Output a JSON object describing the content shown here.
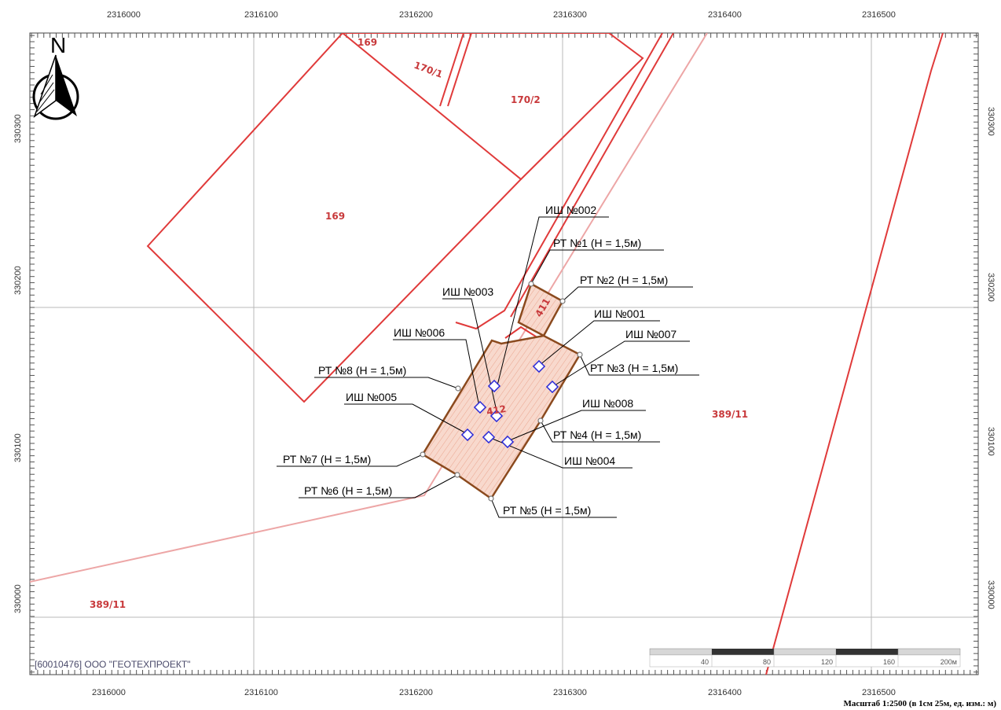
{
  "axes": {
    "x_labels": [
      "2316000",
      "2316100",
      "2316200",
      "2316300",
      "2316400",
      "2316500"
    ],
    "y_labels": [
      "330300",
      "330200",
      "330100",
      "330000"
    ]
  },
  "north": {
    "letter": "N",
    "icon": "north-arrow-icon"
  },
  "parcels": {
    "p169_top": "169",
    "p170_1": "170/1",
    "p170_2": "170/2",
    "p169_main": "169",
    "p411": "411",
    "p412": "412",
    "p389_11_east": "389/11",
    "p389_11_west": "389/11"
  },
  "callouts": {
    "ish002": "ИШ №002",
    "rt1": "РТ №1 (Н = 1,5м)",
    "rt2": "РТ №2 (Н = 1,5м)",
    "ish003": "ИШ №003",
    "ish001": "ИШ №001",
    "ish006": "ИШ №006",
    "ish007": "ИШ №007",
    "rt8": "РТ №8 (Н = 1,5м)",
    "rt3": "РТ №3 (Н = 1,5м)",
    "ish005": "ИШ №005",
    "ish008": "ИШ №008",
    "rt4": "РТ №4 (Н = 1,5м)",
    "rt7": "РТ №7 (Н = 1,5м)",
    "ish004": "ИШ №004",
    "rt6": "РТ №6 (Н = 1,5м)",
    "rt5": "РТ №5 (Н = 1,5м)"
  },
  "company": "[60010476] ООО \"ГЕОТЕХПРОЕКТ\"",
  "scale_bar": {
    "ticks": [
      "40",
      "80",
      "120",
      "160",
      "200м"
    ],
    "caption": "Масштаб 1:2500 (в 1см 25м, ед. изм.: м)"
  },
  "colors": {
    "parcel_line": "#e03a3a",
    "site_outline": "#8b4a1e",
    "site_fill": "#f6d2c4",
    "marker": "#2a2ad8",
    "grid": "#b9b9b9"
  }
}
